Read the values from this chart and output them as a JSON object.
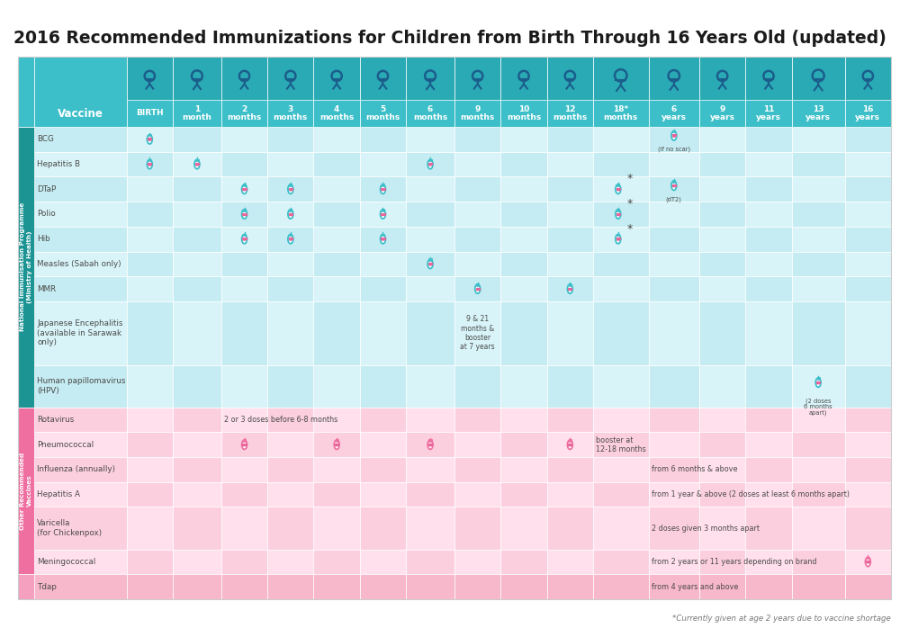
{
  "title": "2016 Recommended Immunizations for Children from Birth Through 16 Years Old (updated)",
  "footnote": "*Currently given at age 2 years due to vaccine shortage",
  "col_labels_top": [
    "BIRTH",
    "1\nmonth",
    "2\nmonths",
    "3\nmonths",
    "4\nmonths",
    "5\nmonths",
    "6\nmonths",
    "9\nmonths",
    "10\nmonths",
    "12\nmonths",
    "18*\nmonths",
    "6\nyears",
    "9\nyears",
    "11\nyears",
    "13\nyears",
    "16\nyears"
  ],
  "header_bg": "#3DBFC9",
  "header_text": "#FFFFFF",
  "vaccine_col_bg": "#3DBFC9",
  "sidebar_nip_bg": "#1C9494",
  "sidebar_orv_bg": "#EE6FA0",
  "sidebar_tdap_bg": "#F4A0BE",
  "nip_row_colors": [
    "#C5ECF2",
    "#D8F4F8"
  ],
  "orv_row_colors": [
    "#FCCFDF",
    "#FFE0EC"
  ],
  "tdap_row_color": "#F8B8CC",
  "text_color": "#4A4A4A",
  "marker_stroke_nip": "#3DBFC9",
  "marker_stroke_orv": "#EE6FA0",
  "nip_label": "National Immunisation Programme\n(Ministry of Health)",
  "orv_label": "Other Recommended\nVaccines",
  "nip_vaccines": [
    {
      "name": "BCG",
      "doses": [
        {
          "col": 0,
          "asterisk": false,
          "sub": ""
        },
        {
          "col": 11,
          "asterisk": false,
          "sub": "(if no scar)"
        }
      ]
    },
    {
      "name": "Hepatitis B",
      "doses": [
        {
          "col": 0,
          "asterisk": false,
          "sub": ""
        },
        {
          "col": 1,
          "asterisk": false,
          "sub": ""
        },
        {
          "col": 6,
          "asterisk": false,
          "sub": ""
        }
      ]
    },
    {
      "name": "DTaP",
      "doses": [
        {
          "col": 2,
          "asterisk": false,
          "sub": ""
        },
        {
          "col": 3,
          "asterisk": false,
          "sub": ""
        },
        {
          "col": 5,
          "asterisk": false,
          "sub": ""
        },
        {
          "col": 10,
          "asterisk": true,
          "sub": ""
        },
        {
          "col": 11,
          "asterisk": false,
          "sub": "(dT2)"
        }
      ]
    },
    {
      "name": "Polio",
      "doses": [
        {
          "col": 2,
          "asterisk": false,
          "sub": ""
        },
        {
          "col": 3,
          "asterisk": false,
          "sub": ""
        },
        {
          "col": 5,
          "asterisk": false,
          "sub": ""
        },
        {
          "col": 10,
          "asterisk": true,
          "sub": ""
        }
      ]
    },
    {
      "name": "Hib",
      "doses": [
        {
          "col": 2,
          "asterisk": false,
          "sub": ""
        },
        {
          "col": 3,
          "asterisk": false,
          "sub": ""
        },
        {
          "col": 5,
          "asterisk": false,
          "sub": ""
        },
        {
          "col": 10,
          "asterisk": true,
          "sub": ""
        }
      ]
    },
    {
      "name": "Measles (Sabah only)",
      "doses": [
        {
          "col": 6,
          "asterisk": false,
          "sub": ""
        }
      ]
    },
    {
      "name": "MMR",
      "doses": [
        {
          "col": 7,
          "asterisk": false,
          "sub": ""
        },
        {
          "col": 9,
          "asterisk": false,
          "sub": ""
        }
      ]
    },
    {
      "name": "Japanese Encephalitis\n(available in Sarawak\nonly)",
      "doses": [],
      "text_col": 7,
      "text_note": "9 & 21\nmonths &\nbooster\nat 7 years"
    },
    {
      "name": "Human papillomavirus\n(HPV)",
      "doses": [
        {
          "col": 14,
          "asterisk": false,
          "sub": "(2 doses\n6 months\napart)"
        }
      ]
    }
  ],
  "orv_vaccines": [
    {
      "name": "Rotavirus",
      "doses": [],
      "text_col": 2,
      "text_note": "2 or 3 doses before 6-8 months",
      "text_align": "left"
    },
    {
      "name": "Pneumococcal",
      "doses": [
        {
          "col": 2,
          "asterisk": false,
          "sub": ""
        },
        {
          "col": 4,
          "asterisk": false,
          "sub": ""
        },
        {
          "col": 6,
          "asterisk": false,
          "sub": ""
        },
        {
          "col": 9,
          "asterisk": false,
          "sub": ""
        }
      ],
      "text_col": 10,
      "text_note": "booster at\n12-18 months",
      "text_align": "left"
    },
    {
      "name": "Influenza (annually)",
      "doses": [],
      "text_col": 11,
      "text_note": "from 6 months & above",
      "text_align": "left"
    },
    {
      "name": "Hepatitis A",
      "doses": [],
      "text_col": 11,
      "text_note": "from 1 year & above (2 doses at least 6 months apart)",
      "text_align": "left"
    },
    {
      "name": "Varicella\n(for Chickenpox)",
      "doses": [],
      "text_col": 11,
      "text_note": "2 doses given 3 months apart",
      "text_align": "left"
    },
    {
      "name": "Meningococcal",
      "doses": [
        {
          "col": 15,
          "asterisk": false,
          "sub": ""
        }
      ],
      "text_col": 11,
      "text_note": "from 2 years or 11 years depending on brand",
      "text_align": "left"
    }
  ],
  "tdap_vaccines": [
    {
      "name": "Tdap",
      "doses": [],
      "text_col": 11,
      "text_note": "from 4 years and above",
      "text_align": "left"
    }
  ]
}
